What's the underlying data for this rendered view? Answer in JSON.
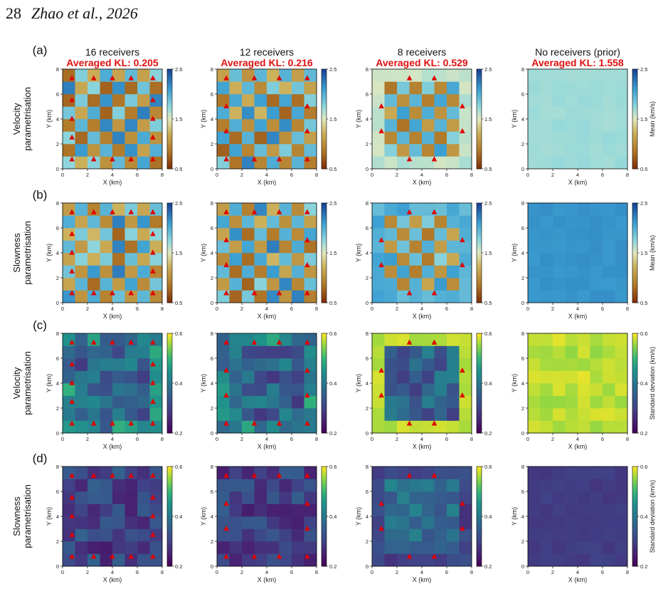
{
  "header": {
    "page_number": "28",
    "authors": "Zhao et al., 2026"
  },
  "figure": {
    "columns": [
      {
        "title": "16 receivers",
        "kl": "Averaged KL: 0.205"
      },
      {
        "title": "12 receivers",
        "kl": "Averaged KL: 0.216"
      },
      {
        "title": "8 receivers",
        "kl": "Averaged KL: 0.529"
      },
      {
        "title": "No receivers (prior)",
        "kl": "Averaged KL: 1.558"
      }
    ],
    "rows": [
      {
        "letter": "(a)",
        "label1": "Velocity",
        "label2": "parametrisation",
        "cmap": "earth",
        "clim": [
          0.5,
          2.5
        ],
        "cticks": [
          "0.5",
          "1.5",
          "2.5"
        ],
        "cbar_label": "Mean (km/s)"
      },
      {
        "letter": "(b)",
        "label1": "Slowness",
        "label2": "parametrisation",
        "cmap": "earth",
        "clim": [
          0.5,
          2.5
        ],
        "cticks": [
          "0.5",
          "1.5",
          "2.5"
        ],
        "cbar_label": "Mean (km/s)"
      },
      {
        "letter": "(c)",
        "label1": "Velocity",
        "label2": "parametrisation",
        "cmap": "viridis",
        "clim": [
          0.2,
          0.6
        ],
        "cticks": [
          "0.2",
          "0.4",
          "0.6"
        ],
        "cbar_label": "Standard deviation (km/s)"
      },
      {
        "letter": "(d)",
        "label1": "Slowness",
        "label2": "parametrisation",
        "cmap": "viridis",
        "clim": [
          0.2,
          0.6
        ],
        "cticks": [
          "0.2",
          "0.4",
          "0.6"
        ],
        "cbar_label": "Standard deviation (km/s)"
      }
    ],
    "xlabel": "X (km)",
    "ylabel": "Y (km)",
    "axis_ticks": [
      "0",
      "2",
      "4",
      "6",
      "8"
    ],
    "receiver_color": "#e00000",
    "kl_color": "#e01010",
    "receivers": {
      "16": [
        [
          0.75,
          7.25
        ],
        [
          2.5,
          7.25
        ],
        [
          4.0,
          7.25
        ],
        [
          5.5,
          7.25
        ],
        [
          7.25,
          7.25
        ],
        [
          0.75,
          5.5
        ],
        [
          7.25,
          5.5
        ],
        [
          0.75,
          4.0
        ],
        [
          7.25,
          4.0
        ],
        [
          0.75,
          2.5
        ],
        [
          7.25,
          2.5
        ],
        [
          0.75,
          0.75
        ],
        [
          2.5,
          0.75
        ],
        [
          4.0,
          0.75
        ],
        [
          5.5,
          0.75
        ],
        [
          7.25,
          0.75
        ]
      ],
      "12": [
        [
          0.75,
          7.25
        ],
        [
          3.0,
          7.25
        ],
        [
          5.0,
          7.25
        ],
        [
          7.25,
          7.25
        ],
        [
          0.75,
          5.0
        ],
        [
          7.25,
          5.0
        ],
        [
          0.75,
          3.0
        ],
        [
          7.25,
          3.0
        ],
        [
          0.75,
          0.75
        ],
        [
          3.0,
          0.75
        ],
        [
          5.0,
          0.75
        ],
        [
          7.25,
          0.75
        ]
      ],
      "8": [
        [
          3.0,
          7.25
        ],
        [
          5.0,
          7.25
        ],
        [
          0.75,
          5.0
        ],
        [
          7.25,
          5.0
        ],
        [
          0.75,
          3.0
        ],
        [
          7.25,
          3.0
        ],
        [
          3.0,
          0.75
        ],
        [
          5.0,
          0.75
        ]
      ],
      "0": []
    },
    "panel_patterns": [
      "checker",
      "checker",
      "ring",
      "flat"
    ],
    "flat_values": {
      "mean_velocity": 1.7,
      "mean_slowness": 2.15,
      "std_velocity": 0.57,
      "std_slowness": 0.29
    }
  }
}
